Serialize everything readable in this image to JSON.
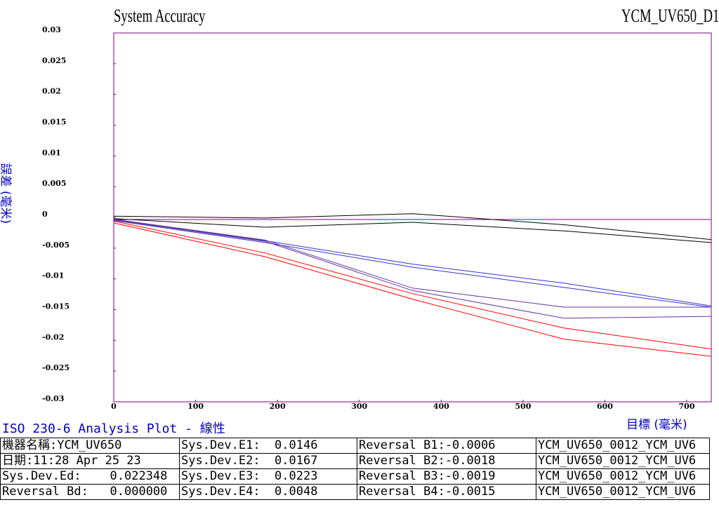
{
  "chart_data": {
    "type": "line",
    "title": "System Accuracy",
    "chart_id": "YCM_UV650_D1",
    "xlabel": "目標 (毫米)",
    "ylabel": "誤差 (毫米)",
    "xlim": [
      0,
      730
    ],
    "ylim": [
      -0.03,
      0.03
    ],
    "xticks": [
      0,
      100,
      200,
      300,
      400,
      500,
      600,
      700
    ],
    "yticks": [
      "0.03",
      "0.025",
      "0.02",
      "0.015",
      "0.01",
      "0.005",
      "0",
      "-0.005",
      "-0.01",
      "-0.015",
      "-0.02",
      "-0.025",
      "-0.03"
    ],
    "grid": false,
    "series": [
      {
        "color": "#000000",
        "points": [
          [
            0,
            0.0002
          ],
          [
            185,
            -0.0001
          ],
          [
            365,
            0.0006
          ],
          [
            550,
            -0.0012
          ],
          [
            730,
            -0.0036
          ]
        ]
      },
      {
        "color": "#000000",
        "points": [
          [
            0,
            -0.0002
          ],
          [
            185,
            -0.0016
          ],
          [
            365,
            -0.0008
          ],
          [
            550,
            -0.0022
          ],
          [
            730,
            -0.0041
          ]
        ]
      },
      {
        "color": "#3333cc",
        "points": [
          [
            0,
            -0.0004
          ],
          [
            185,
            -0.0038
          ],
          [
            365,
            -0.0076
          ],
          [
            550,
            -0.0107
          ],
          [
            730,
            -0.0144
          ]
        ]
      },
      {
        "color": "#3333cc",
        "points": [
          [
            0,
            -0.0005
          ],
          [
            185,
            -0.0041
          ],
          [
            365,
            -0.0081
          ],
          [
            550,
            -0.0114
          ],
          [
            730,
            -0.0146
          ]
        ]
      },
      {
        "color": "#663399",
        "points": [
          [
            0,
            -0.0003
          ],
          [
            185,
            -0.0037
          ],
          [
            365,
            -0.0115
          ],
          [
            550,
            -0.0146
          ],
          [
            730,
            -0.0146
          ]
        ]
      },
      {
        "color": "#663399",
        "points": [
          [
            0,
            -0.0004
          ],
          [
            185,
            -0.0039
          ],
          [
            365,
            -0.0119
          ],
          [
            550,
            -0.0164
          ],
          [
            730,
            -0.0161
          ]
        ]
      },
      {
        "color": "#ff0000",
        "points": [
          [
            0,
            -0.0006
          ],
          [
            185,
            -0.0058
          ],
          [
            365,
            -0.0124
          ],
          [
            550,
            -0.018
          ],
          [
            730,
            -0.0214
          ]
        ]
      },
      {
        "color": "#ff0000",
        "points": [
          [
            0,
            -0.0009
          ],
          [
            185,
            -0.0064
          ],
          [
            365,
            -0.0133
          ],
          [
            550,
            -0.0198
          ],
          [
            730,
            -0.0226
          ]
        ]
      }
    ]
  },
  "analysis_title": "ISO 230-6 Analysis Plot - 線性",
  "info_table": [
    [
      "機器名稱:YCM_UV650",
      "Sys.Dev.E1:  0.0146",
      "Reversal B1:-0.0006",
      "YCM_UV650_0012_YCM_UV6"
    ],
    [
      "日期:11:28 Apr 25 23",
      "Sys.Dev.E2:  0.0167",
      "Reversal B2:-0.0018",
      "YCM_UV650_0012_YCM_UV6"
    ],
    [
      "Sys.Dev.Ed:    0.022348",
      "Sys.Dev.E3:  0.0223",
      "Reversal B3:-0.0019",
      "YCM_UV650_0012_YCM_UV6"
    ],
    [
      "Reversal Bd:   0.000000",
      "Sys.Dev.E4:  0.0048",
      "Reversal B4:-0.0015",
      "YCM_UV650_0012_YCM_UV6"
    ]
  ]
}
